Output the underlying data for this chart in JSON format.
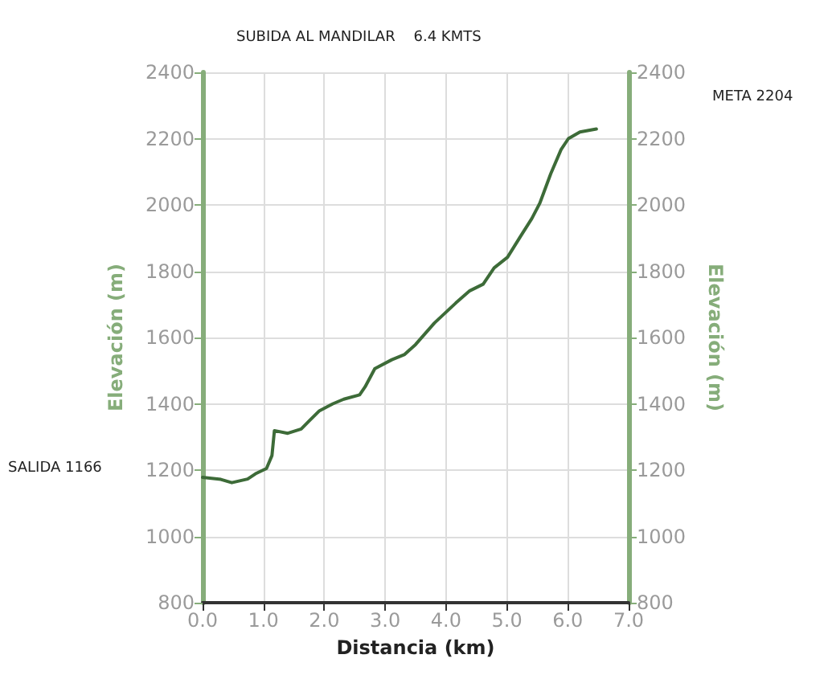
{
  "chart_data": {
    "type": "line",
    "title": "SUBIDA AL MANDILAR    6.4 KMTS",
    "xlabel": "Distancia (km)",
    "ylabel": "Elevación (m)",
    "y2label": "Elevación (m)",
    "annotations": [
      "SALIDA 1166",
      "META 2204"
    ],
    "x": [
      0,
      0.3,
      0.48,
      0.74,
      0.87,
      1.05,
      1.14,
      1.18,
      1.4,
      1.62,
      1.75,
      1.92,
      2.14,
      2.32,
      2.58,
      2.67,
      2.83,
      3.11,
      3.32,
      3.5,
      3.81,
      4.16,
      4.39,
      4.61,
      4.79,
      5.01,
      5.23,
      5.41,
      5.54,
      5.72,
      5.89,
      6.01,
      6.2,
      6.47
    ],
    "series": [
      {
        "color": "#3d6b38",
        "values": [
          1178,
          1172,
          1162,
          1173,
          1189,
          1205,
          1244,
          1319,
          1311,
          1324,
          1348,
          1379,
          1400,
          1414,
          1427,
          1451,
          1506,
          1533,
          1549,
          1579,
          1644,
          1704,
          1741,
          1761,
          1810,
          1842,
          1907,
          1959,
          2005,
          2094,
          2167,
          2200,
          2220,
          2229
        ]
      }
    ],
    "xlim": [
      0,
      7
    ],
    "xticks": [
      {
        "value": 0,
        "label": "0.0"
      },
      {
        "value": 1,
        "label": "1.0"
      },
      {
        "value": 2,
        "label": "2.0"
      },
      {
        "value": 3,
        "label": "3.0"
      },
      {
        "value": 4,
        "label": "4.0"
      },
      {
        "value": 5,
        "label": "5.0"
      },
      {
        "value": 6,
        "label": "6.0"
      },
      {
        "value": 7,
        "label": "7.0"
      }
    ],
    "ylim": [
      800,
      2400
    ],
    "yticks": [
      800,
      1000,
      1200,
      1400,
      1600,
      1800,
      2000,
      2200,
      2400
    ],
    "y2lim": [
      800,
      2400
    ],
    "y2ticks": [
      800,
      1000,
      1200,
      1400,
      1600,
      1800,
      2000,
      2200,
      2400
    ],
    "grid": true,
    "marker": "none",
    "line_style": "solid"
  }
}
